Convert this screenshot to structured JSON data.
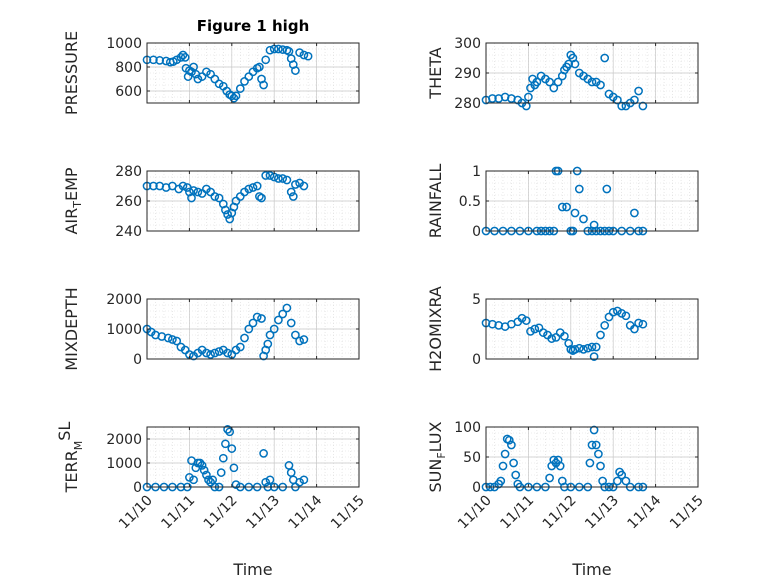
{
  "figure": {
    "title": "Figure 1 high",
    "marker_color": "#0072BD",
    "x_axis_label": "Time",
    "x_tick_labels": [
      "11/10",
      "11/11",
      "11/12",
      "11/13",
      "11/14",
      "11/15"
    ]
  },
  "chart_data": [
    {
      "type": "scatter",
      "name": "pressure",
      "ylabel": "PRESSURE",
      "ylim": [
        500,
        1000
      ],
      "yticks": [
        600,
        800,
        1000
      ],
      "xlim": [
        0,
        5
      ],
      "x": [
        0.0,
        0.15,
        0.3,
        0.45,
        0.55,
        0.62,
        0.7,
        0.8,
        0.85,
        0.9,
        0.92,
        0.97,
        1.0,
        1.05,
        1.1,
        1.15,
        1.2,
        1.3,
        1.4,
        1.5,
        1.6,
        1.7,
        1.8,
        1.88,
        1.95,
        2.0,
        2.05,
        2.1,
        2.2,
        2.3,
        2.4,
        2.5,
        2.6,
        2.65,
        2.7,
        2.75,
        2.8,
        2.9,
        3.0,
        3.1,
        3.2,
        3.3,
        3.35,
        3.4,
        3.45,
        3.5,
        3.6,
        3.7,
        3.8
      ],
      "y": [
        860,
        860,
        855,
        850,
        840,
        845,
        860,
        880,
        900,
        880,
        790,
        720,
        770,
        760,
        800,
        740,
        700,
        720,
        760,
        740,
        700,
        660,
        640,
        600,
        570,
        560,
        540,
        560,
        620,
        680,
        720,
        760,
        790,
        800,
        700,
        650,
        860,
        940,
        950,
        950,
        945,
        940,
        930,
        870,
        820,
        770,
        920,
        900,
        890
      ]
    },
    {
      "type": "scatter",
      "name": "theta",
      "ylabel": "THETA",
      "ylim": [
        280,
        300
      ],
      "yticks": [
        280,
        290,
        300
      ],
      "xlim": [
        0,
        5
      ],
      "x": [
        0.0,
        0.15,
        0.3,
        0.45,
        0.6,
        0.75,
        0.85,
        0.95,
        1.0,
        1.05,
        1.1,
        1.15,
        1.2,
        1.3,
        1.4,
        1.5,
        1.6,
        1.7,
        1.8,
        1.85,
        1.9,
        1.95,
        2.0,
        2.05,
        2.1,
        2.2,
        2.3,
        2.4,
        2.5,
        2.6,
        2.7,
        2.8,
        2.9,
        3.0,
        3.1,
        3.2,
        3.3,
        3.4,
        3.5,
        3.6,
        3.7
      ],
      "y": [
        281,
        281.5,
        281.5,
        282,
        281.5,
        281,
        280,
        279,
        282,
        285,
        288,
        286,
        287,
        289,
        288,
        287,
        285,
        287,
        289,
        291,
        292,
        293,
        296,
        295,
        293,
        290,
        289,
        288,
        287,
        287,
        286,
        295,
        283,
        282,
        281,
        279,
        279,
        280,
        281,
        284,
        279
      ]
    },
    {
      "type": "scatter",
      "name": "air-temp",
      "ylabel": "AIR_TEMP",
      "ylim": [
        240,
        280
      ],
      "yticks": [
        240,
        260,
        280
      ],
      "xlim": [
        0,
        5
      ],
      "x": [
        0.0,
        0.15,
        0.3,
        0.45,
        0.6,
        0.75,
        0.85,
        0.95,
        1.0,
        1.05,
        1.1,
        1.2,
        1.3,
        1.4,
        1.5,
        1.6,
        1.7,
        1.8,
        1.85,
        1.9,
        1.95,
        2.0,
        2.05,
        2.1,
        2.2,
        2.3,
        2.4,
        2.5,
        2.6,
        2.65,
        2.7,
        2.8,
        2.9,
        3.0,
        3.1,
        3.2,
        3.3,
        3.4,
        3.45,
        3.5,
        3.6,
        3.7
      ],
      "y": [
        270,
        270,
        270,
        269,
        270,
        268,
        270,
        269,
        266,
        262,
        267,
        266,
        265,
        268,
        266,
        263,
        262,
        258,
        254,
        251,
        248,
        252,
        256,
        260,
        263,
        266,
        268,
        269,
        270,
        263,
        262,
        277,
        277,
        276,
        275,
        275,
        274,
        266,
        263,
        271,
        272,
        270
      ]
    },
    {
      "type": "scatter",
      "name": "rainfall",
      "ylabel": "RAINFALL",
      "ylim": [
        0,
        1
      ],
      "yticks": [
        0,
        0.5,
        1
      ],
      "xlim": [
        0,
        5
      ],
      "x": [
        0.0,
        0.2,
        0.4,
        0.6,
        0.8,
        1.0,
        1.2,
        1.3,
        1.4,
        1.5,
        1.6,
        1.65,
        1.7,
        1.8,
        1.9,
        2.0,
        2.05,
        2.1,
        2.15,
        2.2,
        2.3,
        2.4,
        2.5,
        2.55,
        2.6,
        2.7,
        2.8,
        2.85,
        2.9,
        3.0,
        3.2,
        3.4,
        3.5,
        3.6,
        3.7
      ],
      "y": [
        0,
        0,
        0,
        0,
        0,
        0,
        0,
        0,
        0,
        0,
        0,
        1,
        1,
        0.4,
        0.4,
        0,
        0,
        0.3,
        1,
        0.7,
        0.2,
        0,
        0,
        0.1,
        0,
        0,
        0,
        0.7,
        0,
        0,
        0,
        0,
        0.3,
        0,
        0
      ]
    },
    {
      "type": "scatter",
      "name": "mixdepth",
      "ylabel": "MIXDEPTH",
      "ylim": [
        0,
        2000
      ],
      "yticks": [
        0,
        1000,
        2000
      ],
      "xlim": [
        0,
        5
      ],
      "x": [
        0.0,
        0.1,
        0.2,
        0.35,
        0.5,
        0.6,
        0.7,
        0.8,
        0.9,
        1.0,
        1.1,
        1.2,
        1.3,
        1.4,
        1.5,
        1.6,
        1.7,
        1.8,
        1.9,
        2.0,
        2.1,
        2.2,
        2.3,
        2.4,
        2.5,
        2.6,
        2.7,
        2.75,
        2.8,
        2.85,
        2.9,
        3.0,
        3.1,
        3.2,
        3.3,
        3.4,
        3.5,
        3.6,
        3.7
      ],
      "y": [
        1000,
        900,
        800,
        750,
        700,
        650,
        600,
        400,
        300,
        150,
        100,
        200,
        300,
        200,
        150,
        200,
        250,
        300,
        200,
        150,
        300,
        400,
        700,
        1000,
        1200,
        1400,
        1350,
        100,
        300,
        500,
        800,
        1000,
        1300,
        1500,
        1700,
        1200,
        800,
        600,
        650
      ]
    },
    {
      "type": "scatter",
      "name": "h2o-mixing-ratio",
      "ylabel": "H2OMIXRA",
      "ylim": [
        0,
        5
      ],
      "yticks": [
        0,
        5
      ],
      "xlim": [
        0,
        5
      ],
      "x": [
        0.0,
        0.15,
        0.3,
        0.45,
        0.6,
        0.75,
        0.85,
        0.95,
        1.05,
        1.15,
        1.25,
        1.35,
        1.45,
        1.55,
        1.65,
        1.75,
        1.85,
        1.95,
        2.0,
        2.05,
        2.1,
        2.2,
        2.3,
        2.4,
        2.5,
        2.55,
        2.6,
        2.7,
        2.8,
        2.9,
        3.0,
        3.1,
        3.2,
        3.3,
        3.4,
        3.5,
        3.6,
        3.7
      ],
      "y": [
        3.0,
        2.9,
        2.8,
        2.7,
        2.9,
        3.1,
        3.4,
        3.2,
        2.3,
        2.5,
        2.6,
        2.2,
        2.0,
        1.7,
        1.8,
        2.2,
        1.9,
        1.3,
        0.8,
        0.7,
        0.8,
        0.9,
        0.8,
        0.9,
        1.0,
        0.2,
        1.0,
        2.0,
        2.8,
        3.5,
        3.9,
        4.0,
        3.8,
        3.6,
        2.8,
        2.5,
        3.0,
        2.9
      ]
    },
    {
      "type": "scatter",
      "name": "terrain-msl",
      "ylabel": "TERR_MSL",
      "ylim": [
        0,
        2500
      ],
      "yticks": [
        0,
        1000,
        2000
      ],
      "xlim": [
        0,
        5
      ],
      "x": [
        0.0,
        0.2,
        0.4,
        0.6,
        0.8,
        0.95,
        1.0,
        1.05,
        1.1,
        1.15,
        1.2,
        1.25,
        1.3,
        1.35,
        1.4,
        1.45,
        1.5,
        1.55,
        1.6,
        1.7,
        1.75,
        1.8,
        1.85,
        1.9,
        1.95,
        2.0,
        2.05,
        2.1,
        2.2,
        2.4,
        2.6,
        2.75,
        2.8,
        2.85,
        2.9,
        3.0,
        3.2,
        3.35,
        3.4,
        3.45,
        3.5,
        3.6,
        3.7
      ],
      "y": [
        0,
        0,
        0,
        0,
        0,
        0,
        400,
        1100,
        300,
        800,
        1000,
        1000,
        900,
        700,
        500,
        300,
        200,
        300,
        0,
        0,
        600,
        1200,
        1800,
        2400,
        2300,
        1600,
        800,
        100,
        0,
        0,
        0,
        1400,
        200,
        0,
        300,
        0,
        0,
        900,
        600,
        300,
        0,
        200,
        300
      ]
    },
    {
      "type": "scatter",
      "name": "sun-flux",
      "ylabel": "SUN_FLUX",
      "ylim": [
        0,
        100
      ],
      "yticks": [
        0,
        50,
        100
      ],
      "xlim": [
        0,
        5
      ],
      "x": [
        0.0,
        0.1,
        0.2,
        0.3,
        0.35,
        0.4,
        0.45,
        0.5,
        0.55,
        0.6,
        0.65,
        0.7,
        0.75,
        0.8,
        1.0,
        1.2,
        1.4,
        1.5,
        1.55,
        1.6,
        1.65,
        1.7,
        1.75,
        1.8,
        1.85,
        2.0,
        2.2,
        2.4,
        2.45,
        2.5,
        2.55,
        2.6,
        2.65,
        2.7,
        2.75,
        2.8,
        2.9,
        3.0,
        3.1,
        3.15,
        3.2,
        3.3,
        3.4,
        3.6,
        3.7
      ],
      "y": [
        0,
        0,
        0,
        5,
        10,
        35,
        55,
        80,
        78,
        70,
        40,
        20,
        5,
        0,
        0,
        0,
        0,
        15,
        35,
        45,
        40,
        45,
        35,
        10,
        0,
        0,
        0,
        0,
        40,
        70,
        95,
        70,
        55,
        35,
        10,
        0,
        0,
        0,
        10,
        25,
        20,
        10,
        0,
        0,
        0
      ]
    }
  ]
}
